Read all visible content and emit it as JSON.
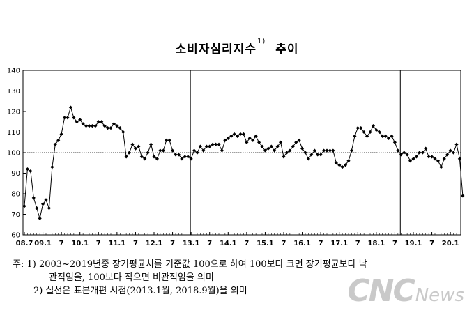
{
  "title": {
    "main": "소비자심리지수",
    "sup": "1)",
    "suffix": "추이"
  },
  "chart_data": {
    "type": "line",
    "ylim": [
      60,
      140
    ],
    "yticks": [
      60,
      70,
      80,
      90,
      100,
      110,
      120,
      130,
      140
    ],
    "x_tick_labels": [
      "08.7",
      "09.1",
      "7",
      "10.1",
      "7",
      "11.1",
      "7",
      "12.1",
      "7",
      "13.1",
      "7",
      "14.1",
      "7",
      "15.1",
      "7",
      "16.1",
      "7",
      "17.1",
      "7",
      "18.1",
      "7",
      "19.1",
      "7",
      "20.1"
    ],
    "reference_line": 100,
    "vertical_markers": [
      "2013.1",
      "2018.9"
    ],
    "x_start": "2008.7",
    "x_end": "2020.3",
    "series": [
      {
        "values": [
          74,
          92,
          91,
          78,
          73,
          68,
          75,
          77,
          73,
          93,
          104,
          106,
          109,
          117,
          117,
          122,
          117,
          115,
          116,
          114,
          113,
          113,
          113,
          113,
          115,
          115,
          113,
          112,
          112,
          114,
          113,
          112,
          110,
          98,
          100,
          104,
          102,
          103,
          98,
          97,
          100,
          104,
          98,
          97,
          101,
          101,
          106,
          106,
          101,
          99,
          99,
          97,
          98,
          98,
          97,
          101,
          100,
          103,
          101,
          103,
          103,
          104,
          104,
          104,
          101,
          106,
          107,
          108,
          109,
          108,
          109,
          109,
          105,
          107,
          106,
          108,
          105,
          103,
          101,
          102,
          103,
          101,
          103,
          105,
          98,
          100,
          101,
          103,
          105,
          106,
          102,
          100,
          97,
          99,
          101,
          99,
          99,
          101,
          101,
          101,
          101,
          95,
          94,
          93,
          94,
          96,
          101,
          108,
          112,
          112,
          110,
          108,
          110,
          113,
          111,
          110,
          108,
          108,
          107,
          108,
          105,
          101,
          99,
          100,
          99,
          96,
          97,
          98,
          100,
          100,
          102,
          98,
          98,
          97,
          96,
          93,
          97,
          99,
          101,
          100,
          104,
          97,
          79
        ]
      }
    ],
    "style": {
      "line_color": "#000000",
      "marker": "diamond"
    }
  },
  "notes": {
    "line1": "주: 1) 2003~2019년중 장기평균치를 기준값 100으로 하여 100보다 크면 장기평균보다 낙",
    "line2": "관적임을, 100보다 작으면 비관적임을 의미",
    "line3": "2) 실선은 표본개편 시점(2013.1월, 2018.9월)을 의미"
  },
  "watermark": {
    "brand": "CNC",
    "suffix": "News"
  }
}
